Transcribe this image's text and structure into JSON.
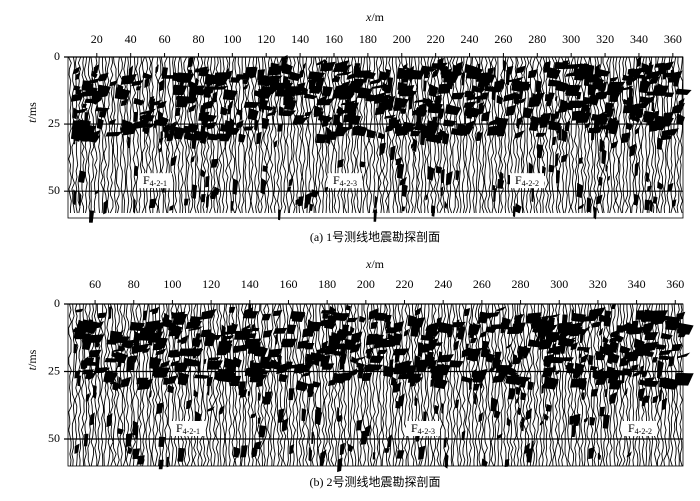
{
  "panels": [
    {
      "x_label": "x",
      "x_unit": "/m",
      "y_label": "t",
      "y_unit": "/ms",
      "xlim": [
        3,
        366
      ],
      "xticks": [
        20,
        40,
        60,
        80,
        100,
        120,
        140,
        160,
        180,
        200,
        220,
        240,
        260,
        280,
        300,
        320,
        340,
        360
      ],
      "ylim": [
        0,
        60
      ],
      "yticks": [
        0,
        25,
        50
      ],
      "faults": [
        {
          "main": "F",
          "sub": "4-2-1"
        },
        {
          "main": "F",
          "sub": "4-2-3"
        },
        {
          "main": "F",
          "sub": "4-2-2"
        }
      ],
      "caption": "(a) 1号测线地震勘探剖面"
    },
    {
      "x_label": "x",
      "x_unit": "/m",
      "y_label": "t",
      "y_unit": "/ms",
      "xlim": [
        46,
        364
      ],
      "xticks": [
        60,
        80,
        100,
        120,
        140,
        160,
        180,
        200,
        220,
        240,
        260,
        280,
        300,
        320,
        340,
        360
      ],
      "ylim": [
        0,
        60
      ],
      "yticks": [
        0,
        25,
        50
      ],
      "faults": [
        {
          "main": "F",
          "sub": "4-2-1"
        },
        {
          "main": "F",
          "sub": "4-2-3"
        },
        {
          "main": "F",
          "sub": "4-2-2"
        }
      ],
      "caption": "(b) 2号测线地震勘探剖面"
    }
  ]
}
